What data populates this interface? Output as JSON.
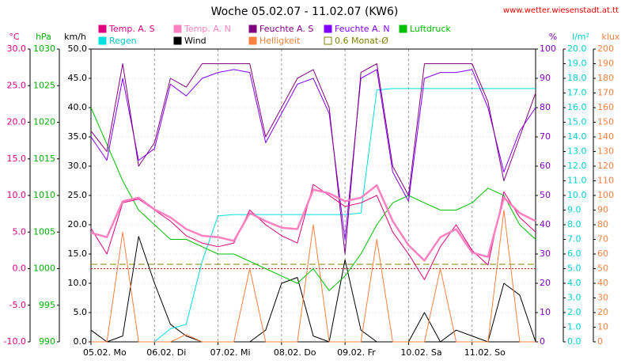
{
  "chart_data": {
    "type": "line",
    "title": "Woche 05.02.07 - 11.02.07 (KW6)",
    "source": "www.wetter.wiesenstadt.at.tt",
    "grid": true,
    "xlim": [
      0,
      7
    ],
    "xticks": [
      {
        "value": 0,
        "label": "05.02.  Mo"
      },
      {
        "value": 1,
        "label": "06.02.  Di"
      },
      {
        "value": 2,
        "label": "07.02.  Mi"
      },
      {
        "value": 3,
        "label": "08.02.  Do"
      },
      {
        "value": 4,
        "label": "09.02.  Fr"
      },
      {
        "value": 5,
        "label": "10.02.  Sa"
      },
      {
        "value": 6,
        "label": "11.02.  So"
      }
    ],
    "x": [
      0,
      0.25,
      0.5,
      0.75,
      1,
      1.25,
      1.5,
      1.75,
      2,
      2.25,
      2.5,
      2.75,
      3,
      3.25,
      3.5,
      3.75,
      4,
      4.25,
      4.5,
      4.75,
      5,
      5.25,
      5.5,
      5.75,
      6,
      6.25,
      6.5,
      6.75,
      7
    ],
    "axes": [
      {
        "id": "temp",
        "label": "°C",
        "side": "left",
        "color": "#e0007f",
        "lim": [
          -10,
          30
        ],
        "ticks": [
          {
            "value": -10,
            "label": "-10.0"
          },
          {
            "value": -5,
            "label": "-5.0"
          },
          {
            "value": 0,
            "label": "0.0"
          },
          {
            "value": 5,
            "label": "5.0"
          },
          {
            "value": 10,
            "label": "10.0"
          },
          {
            "value": 15,
            "label": "15.0"
          },
          {
            "value": 20,
            "label": "20.0"
          },
          {
            "value": 25,
            "label": "25.0"
          },
          {
            "value": 30,
            "label": "30.0"
          }
        ]
      },
      {
        "id": "hpa",
        "label": "hPa",
        "side": "left",
        "color": "#00b000",
        "lim": [
          990,
          1030
        ],
        "ticks": [
          990,
          995,
          1000,
          1005,
          1010,
          1015,
          1020,
          1025,
          1030
        ]
      },
      {
        "id": "kmh",
        "label": "km/h",
        "side": "left",
        "color": "#000000",
        "lim": [
          0,
          50
        ],
        "ticks": [
          {
            "value": 0,
            "label": "0.0"
          },
          {
            "value": 5,
            "label": "5.0"
          },
          {
            "value": 10,
            "label": "10.0"
          },
          {
            "value": 15,
            "label": "15.0"
          },
          {
            "value": 20,
            "label": "20.0"
          },
          {
            "value": 25,
            "label": "25.0"
          },
          {
            "value": 30,
            "label": "30.0"
          },
          {
            "value": 35,
            "label": "35.0"
          },
          {
            "value": 40,
            "label": "40.0"
          },
          {
            "value": 45,
            "label": "45.0"
          },
          {
            "value": 50,
            "label": "50.0"
          }
        ]
      },
      {
        "id": "pct",
        "label": "%",
        "side": "right",
        "color": "#8000c0",
        "lim": [
          0,
          100
        ],
        "ticks": [
          0,
          10,
          20,
          30,
          40,
          50,
          60,
          70,
          80,
          90,
          100
        ]
      },
      {
        "id": "rain",
        "label": "l/m²",
        "side": "right",
        "color": "#00d0d0",
        "lim": [
          0,
          20
        ],
        "ticks": [
          {
            "value": 0,
            "label": "0.0"
          },
          {
            "value": 1,
            "label": "1.0"
          },
          {
            "value": 2,
            "label": "2.0"
          },
          {
            "value": 3,
            "label": "3.0"
          },
          {
            "value": 4,
            "label": "4.0"
          },
          {
            "value": 5,
            "label": "5.0"
          },
          {
            "value": 6,
            "label": "6.0"
          },
          {
            "value": 7,
            "label": "7.0"
          },
          {
            "value": 8,
            "label": "8.0"
          },
          {
            "value": 9,
            "label": "9.0"
          },
          {
            "value": 10,
            "label": "10.0"
          },
          {
            "value": 11,
            "label": "11.0"
          },
          {
            "value": 12,
            "label": "12.0"
          },
          {
            "value": 13,
            "label": "13.0"
          },
          {
            "value": 14,
            "label": "14.0"
          },
          {
            "value": 15,
            "label": "15.0"
          },
          {
            "value": 16,
            "label": "16.0"
          },
          {
            "value": 17,
            "label": "17.0"
          },
          {
            "value": 18,
            "label": "18.0"
          },
          {
            "value": 19,
            "label": "19.0"
          },
          {
            "value": 20,
            "label": "20.0"
          }
        ]
      },
      {
        "id": "klux",
        "label": "klux",
        "side": "right",
        "color": "#ff8040",
        "lim": [
          0,
          200
        ],
        "ticks": [
          0,
          10,
          20,
          30,
          40,
          50,
          60,
          70,
          80,
          90,
          100,
          110,
          120,
          130,
          140,
          150,
          160,
          170,
          180,
          190,
          200
        ]
      }
    ],
    "series": [
      {
        "name": "Temp. A. S",
        "color": "#e0007f",
        "axis": "temp",
        "width": 1,
        "values": [
          5.5,
          2.0,
          9.0,
          9.5,
          8.0,
          6.5,
          4.5,
          3.5,
          3.0,
          3.5,
          8.0,
          6.0,
          4.5,
          3.5,
          11.5,
          10.0,
          8.5,
          9.0,
          10.0,
          5.0,
          2.0,
          -1.5,
          3.0,
          6.0,
          2.5,
          0.5,
          10.5,
          7.0,
          5.0
        ]
      },
      {
        "name": "Temp. A. N",
        "color": "#ff80c0",
        "axis": "temp",
        "width": 2.5,
        "values": [
          4.9,
          4.3,
          9.2,
          9.7,
          8.1,
          7.0,
          5.4,
          4.5,
          4.3,
          3.8,
          7.6,
          6.5,
          5.6,
          5.4,
          10.8,
          10.3,
          9.2,
          9.7,
          11.4,
          6.5,
          3.2,
          1.1,
          4.3,
          5.4,
          2.2,
          1.6,
          9.7,
          7.6,
          6.5
        ]
      },
      {
        "name": "Feuchte A. S",
        "color": "#800080",
        "axis": "pct",
        "width": 1,
        "values": [
          72,
          65,
          95,
          60,
          68,
          90,
          87,
          95,
          95,
          95,
          95,
          70,
          80,
          90,
          93,
          80,
          30,
          92,
          95,
          60,
          50,
          95,
          95,
          95,
          95,
          82,
          55,
          70,
          85
        ]
      },
      {
        "name": "Feuchte A. N",
        "color": "#8000ff",
        "axis": "pct",
        "width": 1,
        "values": [
          70,
          62,
          90,
          62,
          66,
          88,
          84,
          90,
          92,
          93,
          92,
          68,
          78,
          88,
          90,
          78,
          35,
          90,
          93,
          58,
          48,
          90,
          92,
          92,
          93,
          80,
          58,
          72,
          80
        ]
      },
      {
        "name": "Luftdruck",
        "color": "#00c000",
        "axis": "hpa",
        "width": 1,
        "values": [
          1022,
          1017,
          1012,
          1008,
          1006,
          1004,
          1004,
          1003,
          1002,
          1002,
          1001,
          1000,
          999,
          998,
          1000,
          997,
          999,
          1002,
          1006,
          1009,
          1010,
          1009,
          1008,
          1008,
          1009,
          1011,
          1010,
          1006,
          1004
        ]
      },
      {
        "name": "Regen",
        "color": "#00e0e0",
        "axis": "rain",
        "width": 1,
        "values": [
          null,
          null,
          null,
          null,
          0,
          0.9,
          1.2,
          5.5,
          8.6,
          8.7,
          8.7,
          8.7,
          8.7,
          8.7,
          8.7,
          8.7,
          8.7,
          8.8,
          17.2,
          17.3,
          17.3,
          17.3,
          17.3,
          17.3,
          17.3,
          17.3,
          17.3,
          17.3,
          17.3
        ]
      },
      {
        "name": "Wind",
        "color": "#000000",
        "axis": "kmh",
        "width": 1,
        "values": [
          2,
          0,
          1,
          18,
          10,
          3,
          1,
          0,
          0,
          0,
          0,
          2,
          10,
          11,
          1,
          0,
          14,
          2,
          0,
          0,
          0,
          5,
          0,
          2,
          1,
          0,
          10,
          8,
          0
        ]
      },
      {
        "name": "Helligkeit",
        "color": "#ff8040",
        "axis": "klux",
        "width": 1,
        "values": [
          0,
          0,
          75,
          0,
          0,
          0,
          5,
          0,
          0,
          0,
          50,
          0,
          0,
          0,
          80,
          0,
          0,
          0,
          70,
          0,
          0,
          0,
          50,
          0,
          0,
          0,
          90,
          0,
          0
        ]
      }
    ],
    "monthly_average": {
      "name": "0.6 Monat-Ø",
      "value": 0.6,
      "axis": "temp",
      "color": "#808000"
    }
  }
}
